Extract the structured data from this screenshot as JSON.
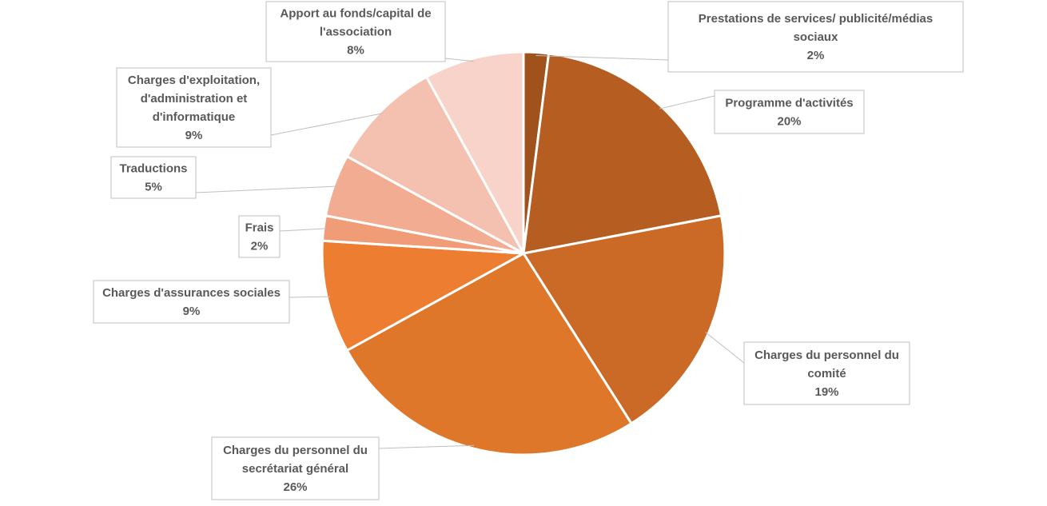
{
  "chart_data": {
    "type": "pie",
    "slices": [
      {
        "label": "Prestations de services/ publicité/médias sociaux",
        "value": 2,
        "percent_label": "2%",
        "color": "#A0521D"
      },
      {
        "label": "Programme d'activités",
        "value": 20,
        "percent_label": "20%",
        "color": "#B65E22"
      },
      {
        "label": "Charges du personnel du comité",
        "value": 19,
        "percent_label": "19%",
        "color": "#CB6A27"
      },
      {
        "label": "Charges du personnel du secrétariat général",
        "value": 26,
        "percent_label": "26%",
        "color": "#DE772A"
      },
      {
        "label": "Charges d'assurances sociales",
        "value": 9,
        "percent_label": "9%",
        "color": "#ED7D31"
      },
      {
        "label": "Frais",
        "value": 2,
        "percent_label": "2%",
        "color": "#F09C77"
      },
      {
        "label": "Traductions",
        "value": 5,
        "percent_label": "5%",
        "color": "#F1AC91"
      },
      {
        "label": "Charges d'exploitation, d'administration et d'informatique",
        "value": 9,
        "percent_label": "9%",
        "color": "#F4C1B1"
      },
      {
        "label": "Apport au fonds/capital de l'association",
        "value": 8,
        "percent_label": "8%",
        "color": "#F8D3C9"
      }
    ],
    "label_lines": [
      [
        "Prestations de services/ publicité/médias",
        "sociaux"
      ],
      [
        "Programme d'activités"
      ],
      [
        "Charges du personnel du",
        "comité"
      ],
      [
        "Charges du personnel du",
        "secrétariat général"
      ],
      [
        "Charges d'assurances sociales"
      ],
      [
        "Frais"
      ],
      [
        "Traductions"
      ],
      [
        "Charges d'exploitation,",
        "d'administration et",
        "d'informatique"
      ],
      [
        "Apport au fonds/capital de",
        "l'association"
      ]
    ],
    "start_angle_deg": 0,
    "direction": "clockwise",
    "legend": "none"
  }
}
